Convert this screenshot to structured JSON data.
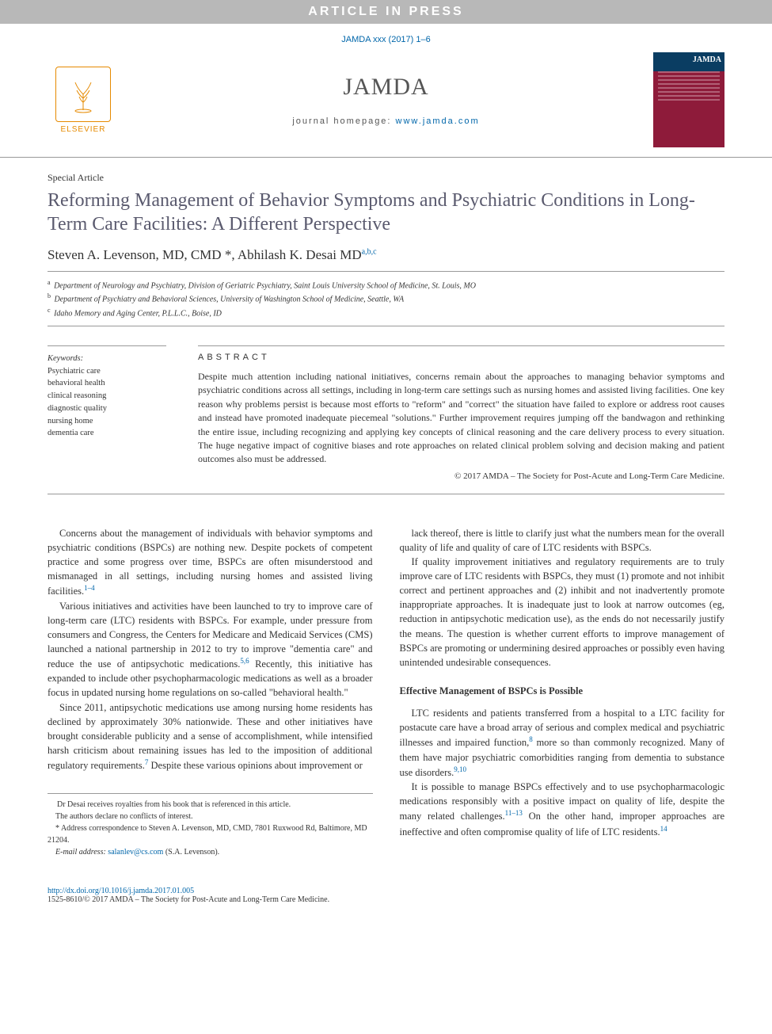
{
  "banner": "ARTICLE IN PRESS",
  "citation": "JAMDA xxx (2017) 1–6",
  "publisher_logo": {
    "name": "ELSEVIER"
  },
  "journal": {
    "name": "JAMDA",
    "homepage_label": "journal homepage: ",
    "homepage_url": "www.jamda.com"
  },
  "cover": {
    "title": "JAMDA"
  },
  "article": {
    "type": "Special Article",
    "title": "Reforming Management of Behavior Symptoms and Psychiatric Conditions in Long-Term Care Facilities: A Different Perspective",
    "authors_html": "Steven A. Levenson, MD, CMD *, Abhilash K. Desai MD",
    "author2_sup": "a,b,c",
    "affiliations": [
      {
        "sup": "a",
        "text": "Department of Neurology and Psychiatry, Division of Geriatric Psychiatry, Saint Louis University School of Medicine, St. Louis, MO"
      },
      {
        "sup": "b",
        "text": "Department of Psychiatry and Behavioral Sciences, University of Washington School of Medicine, Seattle, WA"
      },
      {
        "sup": "c",
        "text": "Idaho Memory and Aging Center, P.L.L.C., Boise, ID"
      }
    ],
    "keywords_head": "Keywords:",
    "keywords": [
      "Psychiatric care",
      "behavioral health",
      "clinical reasoning",
      "diagnostic quality",
      "nursing home",
      "dementia care"
    ],
    "abstract_head": "ABSTRACT",
    "abstract": "Despite much attention including national initiatives, concerns remain about the approaches to managing behavior symptoms and psychiatric conditions across all settings, including in long-term care settings such as nursing homes and assisted living facilities. One key reason why problems persist is because most efforts to \"reform\" and \"correct\" the situation have failed to explore or address root causes and instead have promoted inadequate piecemeal \"solutions.\" Further improvement requires jumping off the bandwagon and rethinking the entire issue, including recognizing and applying key concepts of clinical reasoning and the care delivery process to every situation. The huge negative impact of cognitive biases and rote approaches on related clinical problem solving and decision making and patient outcomes also must be addressed.",
    "copyright": "© 2017 AMDA – The Society for Post-Acute and Long-Term Care Medicine."
  },
  "body": {
    "left_paras": [
      {
        "text": "Concerns about the management of individuals with behavior symptoms and psychiatric conditions (BSPCs) are nothing new. Despite pockets of competent practice and some progress over time, BSPCs are often misunderstood and mismanaged in all settings, including nursing homes and assisted living facilities.",
        "cite": "1–4"
      },
      {
        "text": "Various initiatives and activities have been launched to try to improve care of long-term care (LTC) residents with BSPCs. For example, under pressure from consumers and Congress, the Centers for Medicare and Medicaid Services (CMS) launched a national partnership in 2012 to try to improve \"dementia care\" and reduce the use of antipsychotic medications.",
        "cite": "5,6",
        "tail": " Recently, this initiative has expanded to include other psychopharmacologic medications as well as a broader focus in updated nursing home regulations on so-called \"behavioral health.\""
      },
      {
        "text": "Since 2011, antipsychotic medications use among nursing home residents has declined by approximately 30% nationwide. These and other initiatives have brought considerable publicity and a sense of accomplishment, while intensified harsh criticism about remaining issues has led to the imposition of additional regulatory requirements.",
        "cite": "7",
        "tail": " Despite these various opinions about improvement or"
      }
    ],
    "right_paras": [
      {
        "text": "lack thereof, there is little to clarify just what the numbers mean for the overall quality of life and quality of care of LTC residents with BSPCs."
      },
      {
        "text": "If quality improvement initiatives and regulatory requirements are to truly improve care of LTC residents with BSPCs, they must (1) promote and not inhibit correct and pertinent approaches and (2) inhibit and not inadvertently promote inappropriate approaches. It is inadequate just to look at narrow outcomes (eg, reduction in antipsychotic medication use), as the ends do not necessarily justify the means. The question is whether current efforts to improve management of BSPCs are promoting or undermining desired approaches or possibly even having unintended undesirable consequences."
      }
    ],
    "section_head": "Effective Management of BSPCs is Possible",
    "right_paras_2": [
      {
        "text": "LTC residents and patients transferred from a hospital to a LTC facility for postacute care have a broad array of serious and complex medical and psychiatric illnesses and impaired function,",
        "cite": "8",
        "tail": " more so than commonly recognized. Many of them have major psychiatric comorbidities ranging from dementia to substance use disorders.",
        "cite2": "9,10"
      },
      {
        "text": "It is possible to manage BSPCs effectively and to use psychopharmacologic medications responsibly with a positive impact on quality of life, despite the many related challenges.",
        "cite": "11–13",
        "tail": " On the other hand, improper approaches are ineffective and often compromise quality of life of LTC residents.",
        "cite2": "14"
      }
    ]
  },
  "footnotes": {
    "l1": "Dr Desai receives royalties from his book that is referenced in this article.",
    "l2": "The authors declare no conflicts of interest.",
    "l3": "* Address correspondence to Steven A. Levenson, MD, CMD, 7801 Ruxwood Rd, Baltimore, MD 21204.",
    "email_label": "E-mail address:",
    "email": "salanlev@cs.com",
    "email_attr": "(S.A. Levenson)."
  },
  "doi": {
    "url": "http://dx.doi.org/10.1016/j.jamda.2017.01.005",
    "issn_line": "1525-8610/© 2017 AMDA – The Society for Post-Acute and Long-Term Care Medicine."
  },
  "colors": {
    "banner_bg": "#b8b8b8",
    "link": "#0066aa",
    "title": "#5a5a6e",
    "elsevier": "#e68a00"
  }
}
